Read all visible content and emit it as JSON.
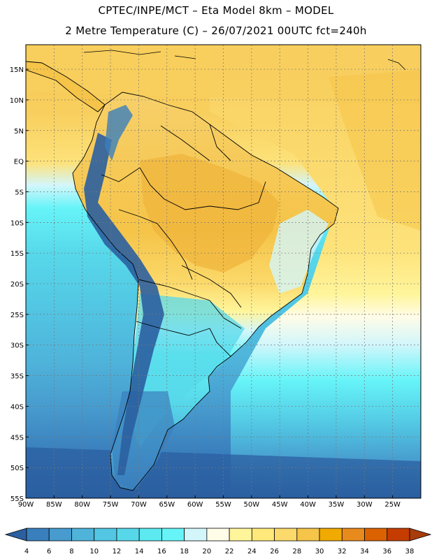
{
  "title": {
    "line1": "CPTEC/INPE/MCT –  Eta Model 8km – MODEL",
    "line2": "2 Metre Temperature (C) – 26/07/2021 00UTC fct=240h"
  },
  "map": {
    "region": "South America",
    "lon_range": [
      -90,
      -20
    ],
    "lat_range": [
      -55,
      19
    ],
    "lat_labels": [
      "15N",
      "10N",
      "5N",
      "EQ",
      "5S",
      "10S",
      "15S",
      "20S",
      "25S",
      "30S",
      "35S",
      "40S",
      "45S",
      "50S",
      "55S"
    ],
    "lat_values": [
      15,
      10,
      5,
      0,
      -5,
      -10,
      -15,
      -20,
      -25,
      -30,
      -35,
      -40,
      -45,
      -50,
      -55
    ],
    "lon_labels": [
      "90W",
      "85W",
      "80W",
      "75W",
      "70W",
      "65W",
      "60W",
      "55W",
      "50W",
      "45W",
      "40W",
      "35W",
      "30W",
      "25W"
    ],
    "lon_values": [
      -90,
      -85,
      -80,
      -75,
      -70,
      -65,
      -60,
      -55,
      -50,
      -45,
      -40,
      -35,
      -30,
      -25
    ],
    "grid": true
  },
  "colorbar": {
    "labels": [
      "4",
      "6",
      "8",
      "10",
      "12",
      "14",
      "16",
      "18",
      "20",
      "22",
      "24",
      "26",
      "28",
      "30",
      "32",
      "34",
      "36",
      "38"
    ],
    "colors": [
      "#2b5fa0",
      "#3a7fbd",
      "#479bce",
      "#4fb3da",
      "#52c6e3",
      "#57d8ea",
      "#5ce9f0",
      "#66f4f8",
      "#d3f6fb",
      "#fffce8",
      "#fff59b",
      "#ffe97a",
      "#fbd96a",
      "#f5c448",
      "#f0aa00",
      "#e88a1c",
      "#dc6200",
      "#c43c00",
      "#a83c0a"
    ]
  }
}
